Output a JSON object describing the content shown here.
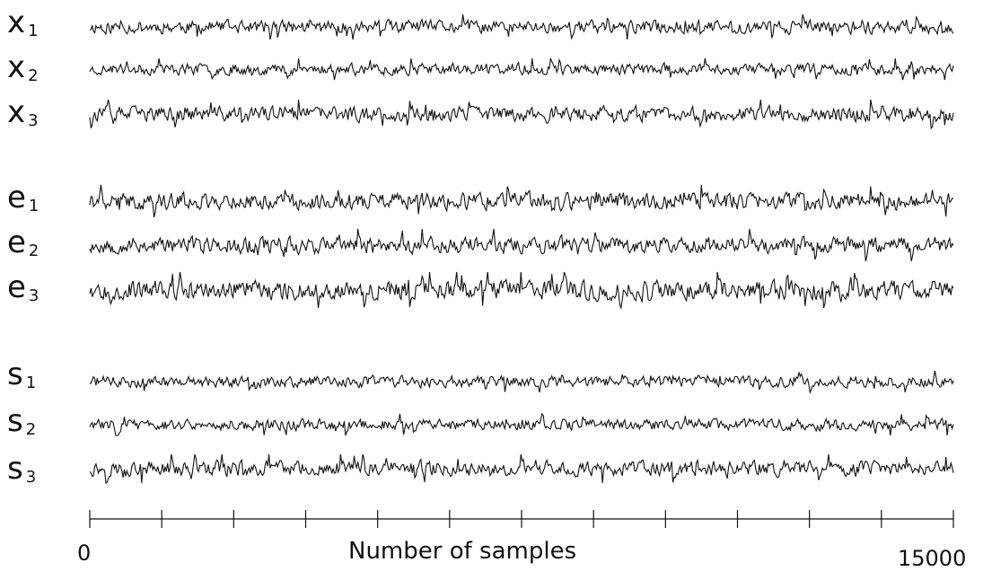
{
  "chart_data": {
    "type": "line",
    "title": "",
    "xlabel": "Number of samples",
    "ylabel": "",
    "xlim": [
      0,
      15000
    ],
    "x_tick_labels": [
      "0",
      "15000"
    ],
    "x_tick_count": 13,
    "grid": false,
    "legend": "none",
    "groups": [
      {
        "name": "x",
        "series": [
          {
            "name": "x",
            "subscript": "1",
            "amplitude": 0.7,
            "seed": 11
          },
          {
            "name": "x",
            "subscript": "2",
            "amplitude": 0.6,
            "seed": 23
          },
          {
            "name": "x",
            "subscript": "3",
            "amplitude": 0.8,
            "seed": 37
          }
        ]
      },
      {
        "name": "e",
        "series": [
          {
            "name": "e",
            "subscript": "1",
            "amplitude": 0.9,
            "seed": 41
          },
          {
            "name": "e",
            "subscript": "2",
            "amplitude": 0.9,
            "seed": 53
          },
          {
            "name": "e",
            "subscript": "3",
            "amplitude": 1.0,
            "seed": 67
          }
        ]
      },
      {
        "name": "s",
        "series": [
          {
            "name": "s",
            "subscript": "1",
            "amplitude": 0.6,
            "seed": 71
          },
          {
            "name": "s",
            "subscript": "2",
            "amplitude": 0.6,
            "seed": 83
          },
          {
            "name": "s",
            "subscript": "3",
            "amplitude": 0.8,
            "seed": 97
          }
        ]
      }
    ],
    "line_color": "#111111"
  }
}
